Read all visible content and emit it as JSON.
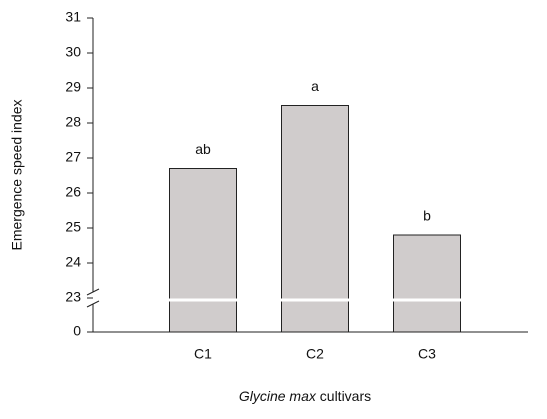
{
  "chart_data": {
    "type": "bar",
    "ylabel": "Emergence speed index",
    "xlabel": {
      "species": "Glycine max",
      "suffix": "cultivars"
    },
    "categories": [
      "C1",
      "C2",
      "C3"
    ],
    "values": [
      26.7,
      28.5,
      24.8
    ],
    "annotations": [
      "ab",
      "a",
      "b"
    ],
    "color": "#d0cccc",
    "ylim": [
      0,
      31
    ],
    "axis_break": [
      0,
      23
    ],
    "yticks": [
      0,
      23,
      24,
      25,
      26,
      27,
      28,
      29,
      30,
      31
    ]
  }
}
